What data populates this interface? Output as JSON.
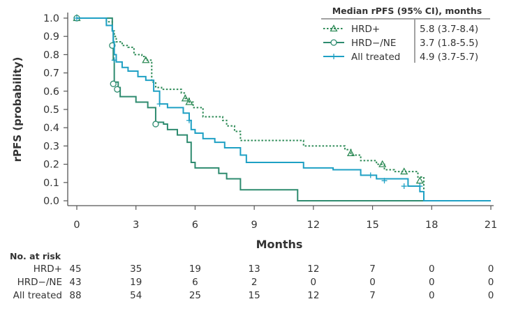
{
  "chart_data": {
    "type": "line",
    "subtype": "kaplan-meier",
    "xlabel": "Months",
    "ylabel": "rPFS (probability)",
    "xlim": [
      0,
      21
    ],
    "ylim": [
      0,
      1.0
    ],
    "x_ticks": [
      "0",
      "3",
      "6",
      "9",
      "12",
      "15",
      "18",
      "21"
    ],
    "y_ticks": [
      "0.0",
      "0.1",
      "0.2",
      "0.3",
      "0.4",
      "0.5",
      "0.6",
      "0.7",
      "0.8",
      "0.9",
      "1.0"
    ],
    "legend": {
      "title": "Median rPFS (95% CI), months",
      "placement": "top-right"
    },
    "series": [
      {
        "name": "HRD+",
        "median": "5.8 (3.7-8.4)",
        "color": "#2e8b57",
        "style": "dotted",
        "marker": "triangle",
        "steps": [
          [
            0,
            1.0
          ],
          [
            1.5,
            0.98
          ],
          [
            1.8,
            0.93
          ],
          [
            1.9,
            0.9
          ],
          [
            2.0,
            0.87
          ],
          [
            2.3,
            0.85
          ],
          [
            2.6,
            0.84
          ],
          [
            2.9,
            0.8
          ],
          [
            3.3,
            0.79
          ],
          [
            3.5,
            0.77
          ],
          [
            3.8,
            0.65
          ],
          [
            4.0,
            0.62
          ],
          [
            4.3,
            0.61
          ],
          [
            5.3,
            0.59
          ],
          [
            5.5,
            0.56
          ],
          [
            5.7,
            0.54
          ],
          [
            5.9,
            0.51
          ],
          [
            6.4,
            0.46
          ],
          [
            7.4,
            0.44
          ],
          [
            7.6,
            0.41
          ],
          [
            8.0,
            0.38
          ],
          [
            8.3,
            0.33
          ],
          [
            11.5,
            0.3
          ],
          [
            13.0,
            0.3
          ],
          [
            13.6,
            0.28
          ],
          [
            13.9,
            0.25
          ],
          [
            14.4,
            0.22
          ],
          [
            15.2,
            0.2
          ],
          [
            15.6,
            0.17
          ],
          [
            16.1,
            0.16
          ],
          [
            16.9,
            0.16
          ],
          [
            17.3,
            0.13
          ],
          [
            17.6,
            0
          ]
        ],
        "censor": [
          [
            0,
            1.0
          ],
          [
            3.5,
            0.77
          ],
          [
            5.5,
            0.56
          ],
          [
            5.7,
            0.54
          ],
          [
            13.9,
            0.26
          ],
          [
            15.5,
            0.2
          ],
          [
            16.6,
            0.16
          ],
          [
            17.4,
            0.11
          ]
        ]
      },
      {
        "name": "HRD−/NE",
        "median": "3.7 (1.8-5.5)",
        "color": "#2e8b6f",
        "style": "solid",
        "marker": "circle",
        "steps": [
          [
            0,
            1.0
          ],
          [
            1.8,
            0.93
          ],
          [
            1.85,
            0.77
          ],
          [
            1.9,
            0.65
          ],
          [
            2.1,
            0.62
          ],
          [
            2.2,
            0.57
          ],
          [
            3.0,
            0.54
          ],
          [
            3.6,
            0.51
          ],
          [
            4.0,
            0.43
          ],
          [
            4.4,
            0.42
          ],
          [
            4.6,
            0.39
          ],
          [
            5.1,
            0.36
          ],
          [
            5.6,
            0.32
          ],
          [
            5.8,
            0.21
          ],
          [
            6.0,
            0.18
          ],
          [
            7.2,
            0.15
          ],
          [
            7.6,
            0.12
          ],
          [
            8.3,
            0.06
          ],
          [
            11.2,
            0.0
          ]
        ],
        "censor": [
          [
            0,
            1.0
          ],
          [
            1.8,
            0.85
          ],
          [
            1.85,
            0.64
          ],
          [
            2.05,
            0.61
          ],
          [
            4.0,
            0.42
          ]
        ]
      },
      {
        "name": "All treated",
        "median": "4.9 (3.7-5.7)",
        "color": "#1ea0c4",
        "style": "solid",
        "marker": "plus",
        "steps": [
          [
            0,
            1.0
          ],
          [
            1.5,
            0.96
          ],
          [
            1.8,
            0.93
          ],
          [
            1.85,
            0.87
          ],
          [
            1.9,
            0.8
          ],
          [
            2.0,
            0.76
          ],
          [
            2.3,
            0.73
          ],
          [
            2.6,
            0.71
          ],
          [
            3.1,
            0.68
          ],
          [
            3.5,
            0.66
          ],
          [
            3.9,
            0.6
          ],
          [
            4.2,
            0.53
          ],
          [
            4.6,
            0.51
          ],
          [
            5.4,
            0.48
          ],
          [
            5.7,
            0.44
          ],
          [
            5.8,
            0.39
          ],
          [
            6.0,
            0.37
          ],
          [
            6.4,
            0.34
          ],
          [
            7.0,
            0.32
          ],
          [
            7.5,
            0.29
          ],
          [
            8.3,
            0.25
          ],
          [
            8.6,
            0.21
          ],
          [
            11.5,
            0.18
          ],
          [
            13.0,
            0.17
          ],
          [
            14.4,
            0.14
          ],
          [
            15.2,
            0.12
          ],
          [
            16.8,
            0.08
          ],
          [
            17.4,
            0.05
          ],
          [
            17.6,
            0
          ]
        ],
        "censor": [
          [
            0,
            1.0
          ],
          [
            1.9,
            0.77
          ],
          [
            4.2,
            0.53
          ],
          [
            5.7,
            0.44
          ],
          [
            14.9,
            0.14
          ],
          [
            15.6,
            0.11
          ],
          [
            16.6,
            0.08
          ],
          [
            17.4,
            0.08
          ]
        ]
      }
    ]
  },
  "risk_table": {
    "title": "No. at risk",
    "rows": [
      {
        "label": "HRD+",
        "color": "#2e8b57",
        "values": [
          "45",
          "35",
          "19",
          "13",
          "12",
          "7",
          "0",
          "0"
        ]
      },
      {
        "label": "HRD−/NE",
        "color": "#2e8b6f",
        "values": [
          "43",
          "19",
          "6",
          "2",
          "0",
          "0",
          "0",
          "0"
        ]
      },
      {
        "label": "All treated",
        "color": "#1ea0c4",
        "values": [
          "88",
          "54",
          "25",
          "15",
          "12",
          "7",
          "0",
          "0"
        ]
      }
    ]
  }
}
